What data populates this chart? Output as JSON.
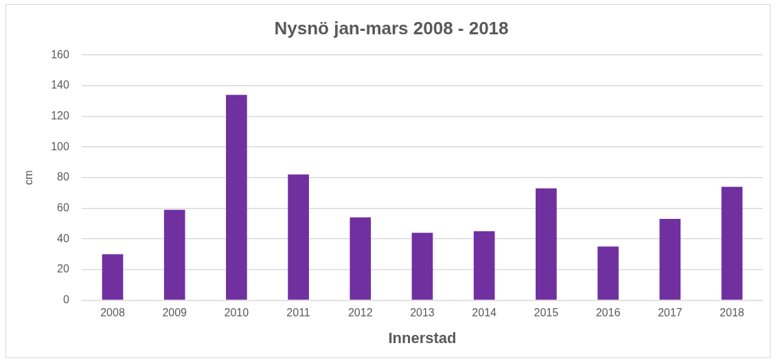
{
  "chart_data": {
    "type": "bar",
    "title": "Nysnö jan-mars 2008 - 2018",
    "xlabel": "Innerstad",
    "ylabel": "cm",
    "categories": [
      "2008",
      "2009",
      "2010",
      "2011",
      "2012",
      "2013",
      "2014",
      "2015",
      "2016",
      "2017",
      "2018"
    ],
    "values": [
      30,
      59,
      134,
      82,
      54,
      44,
      45,
      73,
      35,
      53,
      74
    ],
    "color": "#7030a0",
    "ylim": [
      0,
      160
    ],
    "yticks": [
      0,
      20,
      40,
      60,
      80,
      100,
      120,
      140,
      160
    ],
    "grid": "y",
    "legend": false
  }
}
